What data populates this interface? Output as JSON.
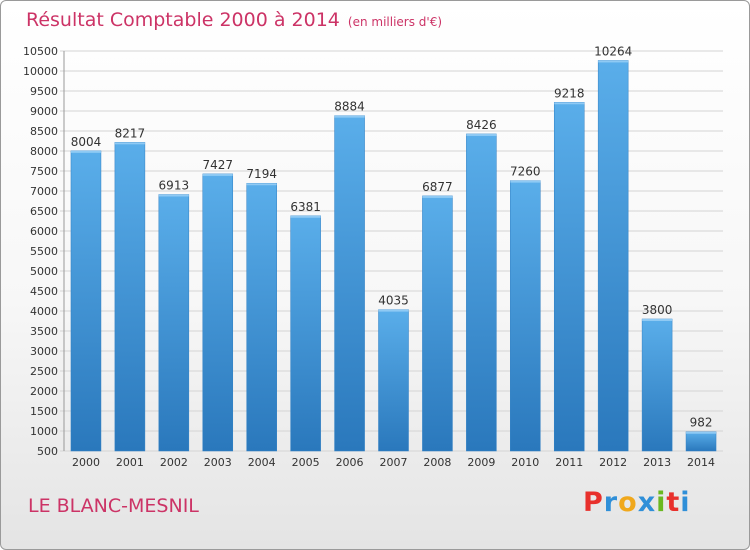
{
  "header": {
    "title": "Résultat Comptable 2000 à 2014",
    "subtitle": "(en milliers d'€)"
  },
  "footer": {
    "commune": "LE BLANC-MESNIL",
    "logo_text": "Proxiti"
  },
  "colors": {
    "title": "#cc3366",
    "bar_light": "#5aaeea",
    "bar_dark": "#2a78bc",
    "logo": [
      "#e8302c",
      "#2f8fd8",
      "#f0a81c",
      "#2f8fd8",
      "#6ab820",
      "#e8302c",
      "#2f8fd8"
    ]
  },
  "chart_data": {
    "type": "bar",
    "title": "Résultat Comptable 2000 à 2014",
    "subtitle": "(en milliers d'€)",
    "xlabel": "",
    "ylabel": "",
    "categories": [
      "2000",
      "2001",
      "2002",
      "2003",
      "2004",
      "2005",
      "2006",
      "2007",
      "2008",
      "2009",
      "2010",
      "2011",
      "2012",
      "2013",
      "2014"
    ],
    "values": [
      8004,
      8217,
      6913,
      7427,
      7194,
      6381,
      8884,
      4035,
      6877,
      8426,
      7260,
      9218,
      10264,
      3800,
      982
    ],
    "ylim": [
      500,
      10500
    ],
    "ytick_step": 500,
    "grid": true
  }
}
